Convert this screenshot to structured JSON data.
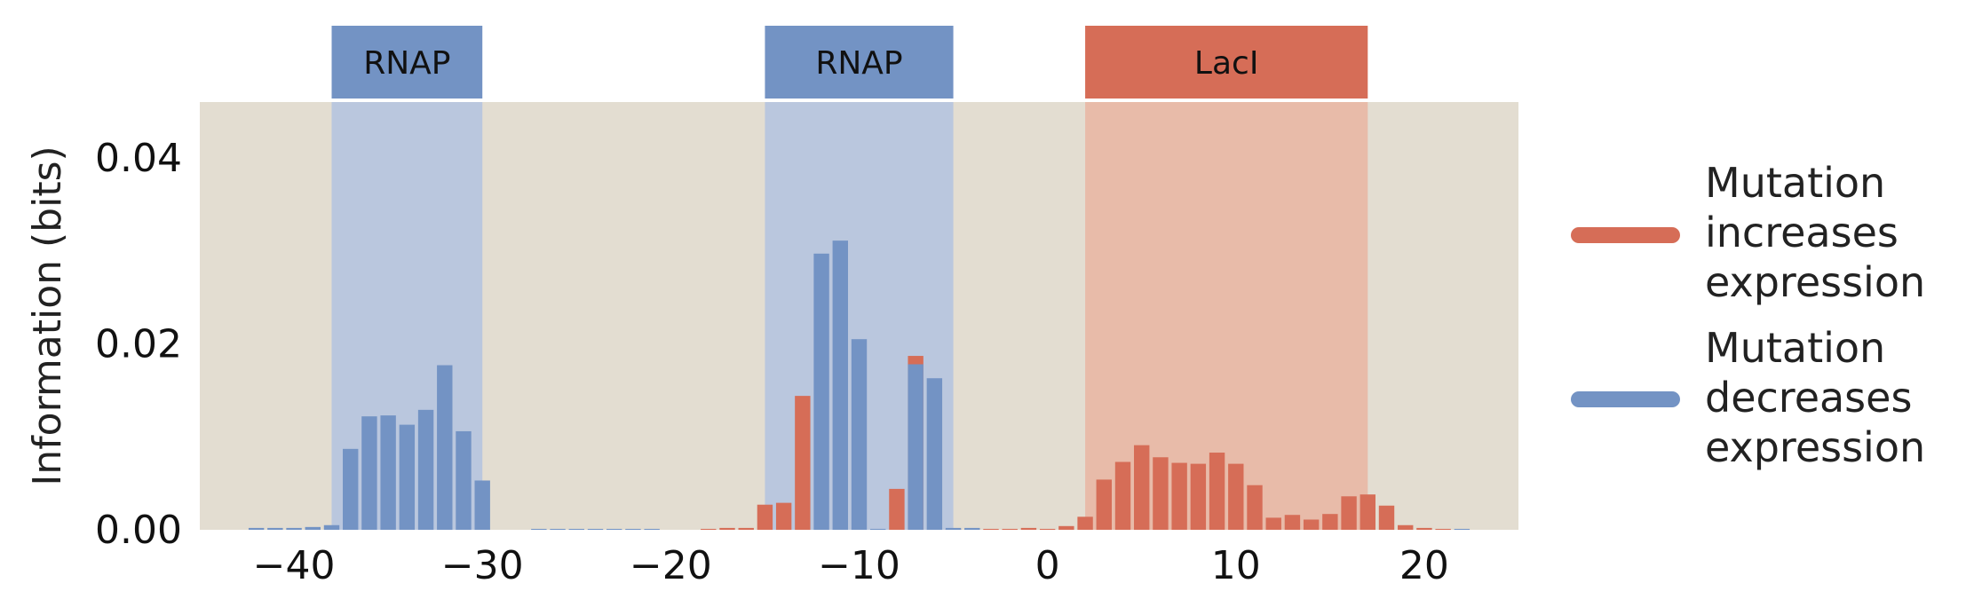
{
  "chart_data": {
    "type": "bar",
    "title": "",
    "xlabel": "",
    "ylabel": "Information (bits)",
    "xlim": [
      -45,
      25
    ],
    "ylim": [
      0,
      0.046
    ],
    "xticks": [
      -40,
      -30,
      -20,
      -10,
      0,
      10,
      20
    ],
    "xtick_labels": [
      "−40",
      "−30",
      "−20",
      "−10",
      "0",
      "10",
      "20"
    ],
    "yticks": [
      0,
      0.02,
      0.04
    ],
    "ytick_labels": [
      "0.00",
      "0.02",
      "0.04"
    ],
    "grid": false,
    "legend_position": "right",
    "background_color": "#e3ddd1",
    "colors": {
      "increases": "#d66d57",
      "decreases": "#7393c4",
      "increases_region": "#e8bba9",
      "decreases_region": "#bac7de"
    },
    "regions": [
      {
        "label": "RNAP",
        "x_start": -38,
        "x_end": -30,
        "color": "decreases"
      },
      {
        "label": "RNAP",
        "x_start": -15,
        "x_end": -5,
        "color": "decreases"
      },
      {
        "label": "LacI",
        "x_start": 2,
        "x_end": 17,
        "color": "increases"
      }
    ],
    "series": [
      {
        "name": "Mutation increases expression",
        "color": "increases",
        "x": [
          -18,
          -17,
          -16,
          -15,
          -14,
          -13,
          -8,
          -7,
          -5,
          -4,
          -3,
          -2,
          -1,
          0,
          1,
          2,
          3,
          4,
          5,
          6,
          7,
          8,
          9,
          10,
          11,
          12,
          13,
          14,
          15,
          16,
          17,
          18,
          19,
          20,
          21
        ],
        "values": [
          0.0001,
          0.0002,
          0.0002,
          0.0027,
          0.0029,
          0.0144,
          0.0044,
          0.0187,
          0.0001,
          0.0001,
          0.0001,
          0.0001,
          0.0002,
          0.0001,
          0.0004,
          0.0014,
          0.0054,
          0.0073,
          0.0091,
          0.0078,
          0.0072,
          0.0071,
          0.0083,
          0.0071,
          0.0048,
          0.0013,
          0.0016,
          0.0011,
          0.0017,
          0.0036,
          0.0038,
          0.0026,
          0.0005,
          0.0002,
          0.0001
        ]
      },
      {
        "name": "Mutation decreases expression",
        "color": "decreases",
        "x": [
          -42,
          -41,
          -40,
          -39,
          -38,
          -37,
          -36,
          -35,
          -34,
          -33,
          -32,
          -31,
          -30,
          -27,
          -26,
          -25,
          -24,
          -23,
          -22,
          -21,
          -12,
          -11,
          -10,
          -9,
          -7,
          -6,
          -5,
          -4,
          22
        ],
        "values": [
          0.0002,
          0.0002,
          0.0002,
          0.0003,
          0.0005,
          0.0087,
          0.0122,
          0.0123,
          0.0113,
          0.0129,
          0.0177,
          0.0106,
          0.0053,
          0.0001,
          0.0001,
          0.0001,
          0.0001,
          0.0001,
          0.0001,
          0.0001,
          0.0297,
          0.0311,
          0.0205,
          0.0001,
          0.0178,
          0.0163,
          0.0002,
          0.0002,
          0.0001
        ]
      }
    ]
  },
  "legend": {
    "items": [
      {
        "lines": [
          "Mutation",
          "increases",
          "expression"
        ],
        "color": "increases"
      },
      {
        "lines": [
          "Mutation",
          "decreases",
          "expression"
        ],
        "color": "decreases"
      }
    ]
  }
}
